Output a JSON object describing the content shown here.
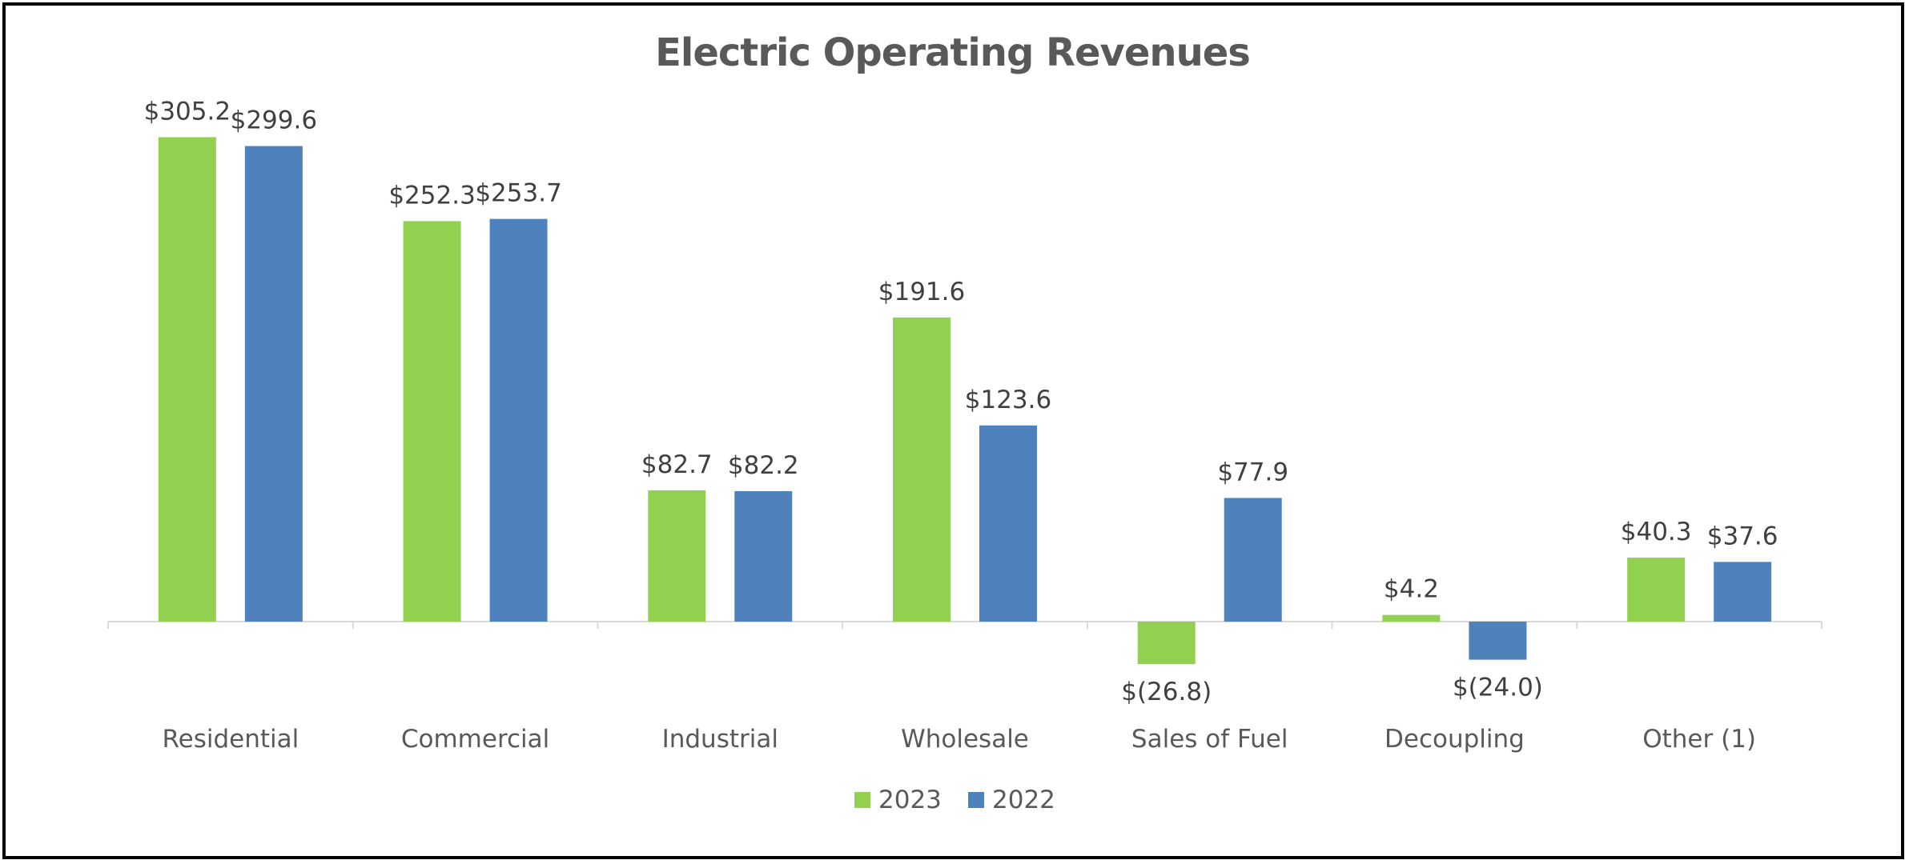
{
  "chart_data": {
    "type": "bar",
    "title": "Electric Operating Revenues",
    "categories": [
      "Residential",
      "Commercial",
      "Industrial",
      "Wholesale",
      "Sales of Fuel",
      "Decoupling",
      "Other (1)"
    ],
    "series": [
      {
        "name": "2023",
        "color": "#92d050",
        "values": [
          305.2,
          252.3,
          82.7,
          191.6,
          -26.8,
          4.2,
          40.3
        ],
        "labels": [
          "$305.2",
          "$252.3",
          "$82.7",
          "$191.6",
          "$(26.8)",
          "$4.2",
          "$40.3"
        ]
      },
      {
        "name": "2022",
        "color": "#4f81bd",
        "values": [
          299.6,
          253.7,
          82.2,
          123.6,
          77.9,
          -24.0,
          37.6
        ],
        "labels": [
          "$299.6",
          "$253.7",
          "$82.2",
          "$123.6",
          "$77.9",
          "$(24.0)",
          "$37.6"
        ]
      }
    ],
    "xlabel": "",
    "ylabel": "",
    "ylim": [
      -60,
      320
    ],
    "grid": false,
    "legend": "bottom-center"
  }
}
